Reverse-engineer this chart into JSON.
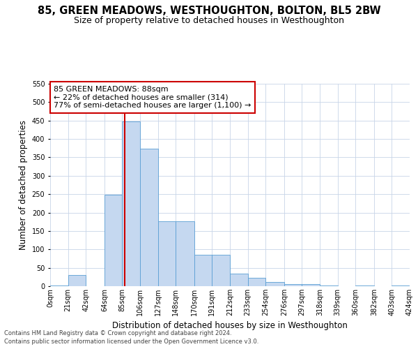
{
  "title": "85, GREEN MEADOWS, WESTHOUGHTON, BOLTON, BL5 2BW",
  "subtitle": "Size of property relative to detached houses in Westhoughton",
  "xlabel": "Distribution of detached houses by size in Westhoughton",
  "ylabel": "Number of detached properties",
  "footer_line1": "Contains HM Land Registry data © Crown copyright and database right 2024.",
  "footer_line2": "Contains public sector information licensed under the Open Government Licence v3.0.",
  "bin_edges": [
    0,
    21,
    42,
    64,
    85,
    106,
    127,
    148,
    170,
    191,
    212,
    233,
    254,
    276,
    297,
    318,
    339,
    360,
    382,
    403,
    424
  ],
  "bar_heights": [
    2,
    30,
    0,
    248,
    447,
    373,
    176,
    176,
    85,
    85,
    35,
    22,
    11,
    5,
    5,
    2,
    0,
    2,
    0,
    2
  ],
  "bar_color": "#c5d8f0",
  "bar_edge_color": "#5a9fd4",
  "property_size": 88,
  "vline_color": "#cc0000",
  "annotation_line1": "85 GREEN MEADOWS: 88sqm",
  "annotation_line2": "← 22% of detached houses are smaller (314)",
  "annotation_line3": "77% of semi-detached houses are larger (1,100) →",
  "annotation_box_color": "#ffffff",
  "annotation_box_edge": "#cc0000",
  "ylim": [
    0,
    550
  ],
  "yticks": [
    0,
    50,
    100,
    150,
    200,
    250,
    300,
    350,
    400,
    450,
    500,
    550
  ],
  "grid_color": "#c8d4e8",
  "background_color": "#ffffff",
  "title_fontsize": 10.5,
  "subtitle_fontsize": 9,
  "tick_label_fontsize": 7,
  "axis_label_fontsize": 8.5,
  "annotation_fontsize": 8
}
